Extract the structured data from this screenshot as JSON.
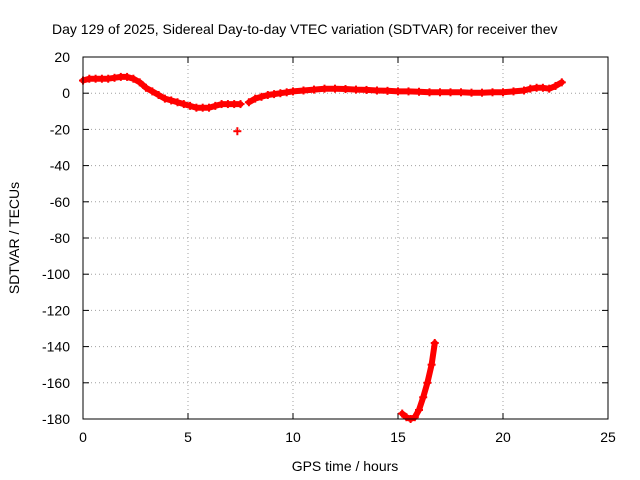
{
  "chart_data": {
    "type": "scatter",
    "title": "Day 129 of 2025, Sidereal Day-to-day VTEC variation (SDTVAR) for receiver thev",
    "xlabel": "GPS time / hours",
    "ylabel": "SDTVAR / TECUs",
    "xlim": [
      0,
      25
    ],
    "ylim": [
      -180,
      20
    ],
    "xticks": [
      0,
      5,
      10,
      15,
      20,
      25
    ],
    "yticks": [
      20,
      0,
      -20,
      -40,
      -60,
      -80,
      -100,
      -120,
      -140,
      -160,
      -180
    ],
    "grid": true,
    "color": "#ff0000",
    "series": [
      {
        "name": "SDTVAR segment 1",
        "points": [
          [
            0.0,
            7
          ],
          [
            0.3,
            8
          ],
          [
            0.6,
            8
          ],
          [
            0.9,
            8
          ],
          [
            1.2,
            8
          ],
          [
            1.5,
            8.5
          ],
          [
            1.8,
            9
          ],
          [
            2.1,
            9
          ],
          [
            2.4,
            8
          ],
          [
            2.7,
            6
          ],
          [
            3.0,
            3
          ],
          [
            3.3,
            1
          ],
          [
            3.6,
            -1
          ],
          [
            3.9,
            -3
          ],
          [
            4.2,
            -4
          ],
          [
            4.5,
            -5
          ],
          [
            4.8,
            -6
          ],
          [
            5.1,
            -7
          ],
          [
            5.4,
            -8
          ],
          [
            5.7,
            -8
          ],
          [
            6.0,
            -8
          ],
          [
            6.3,
            -7
          ],
          [
            6.6,
            -6
          ],
          [
            6.9,
            -6
          ],
          [
            7.2,
            -6
          ],
          [
            7.5,
            -6
          ]
        ]
      },
      {
        "name": "SDTVAR isolated",
        "points": [
          [
            7.35,
            -21
          ]
        ]
      },
      {
        "name": "SDTVAR segment 2",
        "points": [
          [
            7.9,
            -5
          ],
          [
            8.2,
            -3
          ],
          [
            8.5,
            -2
          ],
          [
            8.8,
            -1
          ],
          [
            9.1,
            -0.5
          ],
          [
            9.4,
            0
          ],
          [
            9.7,
            0.5
          ],
          [
            10.0,
            1
          ],
          [
            10.5,
            1.5
          ],
          [
            11.0,
            2
          ],
          [
            11.5,
            2.5
          ],
          [
            12.0,
            2.5
          ],
          [
            12.5,
            2.3
          ],
          [
            13.0,
            2
          ],
          [
            13.5,
            1.8
          ],
          [
            14.0,
            1.5
          ],
          [
            14.5,
            1.3
          ],
          [
            15.0,
            1
          ],
          [
            15.5,
            1
          ],
          [
            16.0,
            0.8
          ],
          [
            16.5,
            0.5
          ],
          [
            17.0,
            0.5
          ],
          [
            17.5,
            0.5
          ],
          [
            18.0,
            0.5
          ],
          [
            18.5,
            0.3
          ],
          [
            19.0,
            0.3
          ],
          [
            19.5,
            0.5
          ],
          [
            20.0,
            0.5
          ],
          [
            20.5,
            1
          ],
          [
            21.0,
            1.5
          ],
          [
            21.3,
            2.5
          ],
          [
            21.6,
            3
          ],
          [
            21.9,
            3
          ],
          [
            22.2,
            2.5
          ],
          [
            22.5,
            4
          ],
          [
            22.8,
            6
          ]
        ]
      },
      {
        "name": "SDTVAR dip",
        "points": [
          [
            15.2,
            -177
          ],
          [
            15.4,
            -179
          ],
          [
            15.6,
            -180
          ],
          [
            15.8,
            -179
          ],
          [
            16.0,
            -175
          ],
          [
            16.2,
            -168
          ],
          [
            16.4,
            -160
          ],
          [
            16.6,
            -150
          ],
          [
            16.75,
            -138
          ]
        ]
      }
    ]
  }
}
